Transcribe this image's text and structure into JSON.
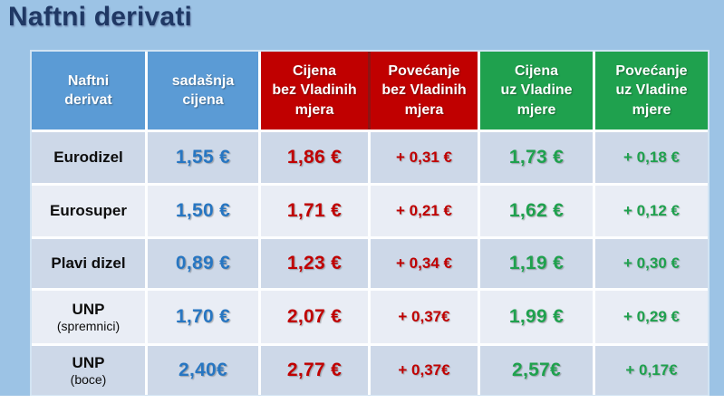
{
  "title": "Naftni derivati",
  "table": {
    "headers": [
      {
        "id": "naftni-derivat",
        "label": "Naftni\nderivat",
        "theme": "blue"
      },
      {
        "id": "sadasnja-cijena",
        "label": "sadašnja\ncijena",
        "theme": "blue"
      },
      {
        "id": "cijena-bez-mjera",
        "label": "Cijena\nbez Vladinih\nmjera",
        "theme": "red"
      },
      {
        "id": "povecanje-bez-mjera",
        "label": "Povećanje\nbez Vladinih\nmjera",
        "theme": "red"
      },
      {
        "id": "cijena-uz-mjere",
        "label": "Cijena\nuz Vladine\nmjere",
        "theme": "green"
      },
      {
        "id": "povecanje-uz-mjere",
        "label": "Povećanje\nuz Vladine\nmjere",
        "theme": "green"
      }
    ],
    "rows": [
      {
        "name": "Eurodizel",
        "sub": "",
        "current_price": "1,55 €",
        "price_without_measures": "1,86 €",
        "increase_without_measures": "+ 0,31 €",
        "price_with_measures": "1,73 €",
        "increase_with_measures": "+ 0,18 €"
      },
      {
        "name": "Eurosuper",
        "sub": "",
        "current_price": "1,50 €",
        "price_without_measures": "1,71 €",
        "increase_without_measures": "+ 0,21 €",
        "price_with_measures": "1,62 €",
        "increase_with_measures": "+ 0,12 €"
      },
      {
        "name": "Plavi dizel",
        "sub": "",
        "current_price": "0,89 €",
        "price_without_measures": "1,23 €",
        "increase_without_measures": "+ 0,34 €",
        "price_with_measures": "1,19 €",
        "increase_with_measures": "+ 0,30 €"
      },
      {
        "name": "UNP",
        "sub": "(spremnici)",
        "current_price": "1,70 €",
        "price_without_measures": "2,07 €",
        "increase_without_measures": "+ 0,37€",
        "price_with_measures": "1,99 €",
        "increase_with_measures": "+ 0,29 €"
      },
      {
        "name": "UNP",
        "sub": "(boce)",
        "current_price": "2,40€",
        "price_without_measures": "2,77 €",
        "increase_without_measures": "+ 0,37€",
        "price_with_measures": "2,57€",
        "increase_with_measures": "+ 0,17€"
      }
    ]
  },
  "colors": {
    "page_background": "#9CC3E5",
    "title_text": "#1F3864",
    "header_blue": "#5B9BD5",
    "header_red": "#C00000",
    "header_green": "#1FA14E",
    "divider_red": "#8E1313",
    "row_band_dark": "#CDD8E8",
    "row_band_light": "#E9EDF5",
    "value_blue": "#2776C2",
    "value_red": "#C00000",
    "value_green": "#1FA14E"
  }
}
